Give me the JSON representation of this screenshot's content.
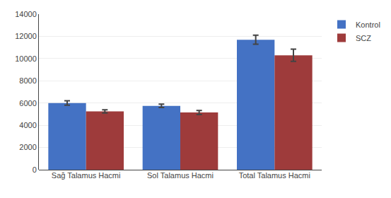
{
  "chart_data": {
    "type": "bar",
    "categories": [
      "Sağ Talamus Hacmi",
      "Sol Talamus Hacmi",
      "Total Talamus Hacmi"
    ],
    "series": [
      {
        "name": "Kontrol",
        "color": "#4472C4",
        "values": [
          6000,
          5750,
          11700
        ],
        "errors": [
          200,
          150,
          400
        ]
      },
      {
        "name": "SCZ",
        "color": "#9E3B3B",
        "values": [
          5250,
          5150,
          10300
        ],
        "errors": [
          150,
          180,
          550
        ]
      }
    ],
    "ylim": [
      0,
      14000
    ],
    "yticks": [
      0,
      2000,
      4000,
      6000,
      8000,
      10000,
      12000,
      14000
    ],
    "grid": true,
    "legend": "upper right"
  }
}
